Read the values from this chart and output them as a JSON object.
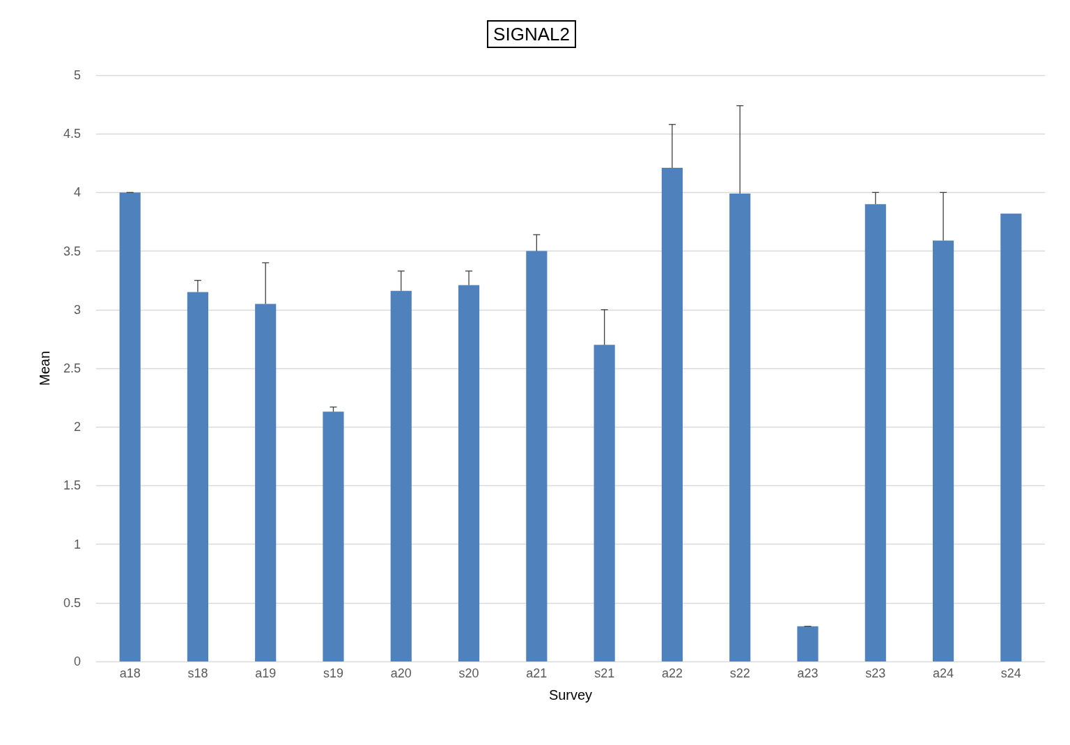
{
  "chart_data": {
    "type": "bar",
    "title": "SIGNAL2",
    "xlabel": "Survey",
    "ylabel": "Mean",
    "categories": [
      "a18",
      "s18",
      "a19",
      "s19",
      "a20",
      "s20",
      "a21",
      "s21",
      "a22",
      "s22",
      "a23",
      "s23",
      "a24",
      "s24"
    ],
    "values": [
      4.0,
      3.15,
      3.05,
      2.13,
      3.16,
      3.21,
      3.5,
      2.7,
      4.21,
      3.99,
      0.3,
      3.9,
      3.59,
      3.82
    ],
    "errors": [
      [
        4.0,
        4.0
      ],
      [
        3.15,
        3.25
      ],
      [
        3.05,
        3.4
      ],
      [
        2.13,
        2.17
      ],
      [
        3.16,
        3.33
      ],
      [
        3.21,
        3.33
      ],
      [
        3.5,
        3.64
      ],
      [
        2.7,
        3.0
      ],
      [
        4.21,
        4.58
      ],
      [
        3.99,
        4.74
      ],
      [
        0.3,
        0.3
      ],
      [
        3.9,
        4.0
      ],
      [
        3.59,
        4.0
      ],
      null
    ],
    "color": "#4f81bd",
    "ylim": [
      0,
      5
    ],
    "yticks": [
      0,
      0.5,
      1,
      1.5,
      2,
      2.5,
      3,
      3.5,
      4,
      4.5,
      5
    ],
    "grid": "y"
  }
}
